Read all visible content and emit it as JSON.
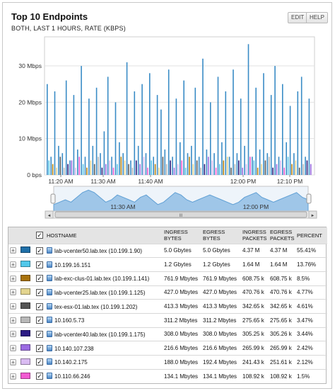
{
  "header": {
    "title": "Top 10 Endpoints",
    "subtitle": "BOTH, LAST 1 HOURS, RATE (KBPS)",
    "edit_label": "EDIT",
    "help_label": "HELP"
  },
  "chart_data": {
    "type": "bar",
    "y_ticks": [
      "0 bps",
      "10 Mbps",
      "20 Mbps",
      "30 Mbps"
    ],
    "y_values": [
      0,
      10,
      20,
      30
    ],
    "ylim": [
      0,
      38
    ],
    "x_ticks": [
      "11:20 AM",
      "11:30 AM",
      "11:40 AM",
      "12:00 PM",
      "12:10 PM"
    ],
    "grid": true,
    "series_colors": [
      "#3a8cc6",
      "#55c6e8",
      "#b5800e",
      "#e2d38f",
      "#5a5a5a",
      "#b6b6b6",
      "#2a1a7a",
      "#9a6ae0",
      "#d7b9f0",
      "#f05ad0"
    ],
    "primary_values": [
      25,
      5,
      23,
      8,
      6,
      26,
      4,
      22,
      7,
      30,
      5,
      21,
      8,
      24,
      6,
      12,
      27,
      5,
      20,
      9,
      6,
      31,
      4,
      23,
      8,
      25,
      6,
      28,
      5,
      22,
      18,
      7,
      29,
      5,
      21,
      9,
      26,
      6,
      8,
      24,
      5,
      32,
      7,
      20,
      6,
      27,
      9,
      23,
      5,
      29,
      6,
      21,
      8,
      36,
      5,
      24,
      7,
      28,
      6,
      22,
      30,
      5,
      25,
      9,
      19,
      6,
      23,
      27,
      5,
      21
    ],
    "secondary_values": [
      4,
      3,
      2,
      5,
      2,
      3,
      4,
      2,
      5,
      3,
      2,
      4,
      3,
      5,
      2,
      3,
      4,
      2,
      3,
      5,
      4,
      3,
      2,
      4,
      3,
      5,
      2,
      4,
      3,
      2,
      5,
      3,
      4,
      2,
      3,
      4,
      2,
      5,
      3,
      4,
      2,
      3,
      5,
      4,
      2,
      3,
      4,
      5,
      2,
      3,
      4,
      2,
      3,
      5,
      4,
      2,
      3,
      4,
      5,
      2,
      3,
      4,
      2,
      5,
      3,
      4,
      2,
      3,
      4,
      3
    ]
  },
  "overview": {
    "x_ticks": [
      "11:30 AM",
      "12:00 PM"
    ],
    "values": [
      3,
      4,
      5,
      4,
      6,
      8,
      9,
      8,
      6,
      4,
      5,
      7,
      6,
      5,
      4,
      6,
      7,
      5,
      3,
      4,
      6,
      8,
      7,
      5,
      4,
      5,
      6,
      7,
      6,
      5,
      4,
      3,
      4,
      6,
      7,
      8,
      6,
      5,
      4,
      5,
      6,
      7,
      8,
      6,
      5
    ]
  },
  "scrollbar": {
    "left_arrow": "◄",
    "right_arrow": "►",
    "grip": "III"
  },
  "table": {
    "headers": {
      "hostname": "HOSTNAME",
      "ingress_bytes": "INGRESS BYTES",
      "egress_bytes": "EGRESS BYTES",
      "ingress_packets": "INGRESS PACKETS",
      "egress_packets": "EGRESS PACKETS",
      "percent": "PERCENT"
    },
    "header_checkbox": "✓",
    "rows": [
      {
        "color": "#1f6fa8",
        "expand": "+",
        "check": "✓",
        "hostname": "lab-vcenter50.lab.tex (10.199.1.90)",
        "ingress_bytes": "5.0 Gbytes",
        "egress_bytes": "5.0 Gbytes",
        "ingress_packets": "4.37 M",
        "egress_packets": "4.37 M",
        "percent": "55.41%"
      },
      {
        "color": "#52c8ea",
        "expand": "+",
        "check": "✓",
        "hostname": "10.199.16.151",
        "ingress_bytes": "1.2 Gbytes",
        "egress_bytes": "1.2 Gbytes",
        "ingress_packets": "1.64 M",
        "egress_packets": "1.64 M",
        "percent": "13.76%"
      },
      {
        "color": "#a8720c",
        "expand": "+",
        "check": "✓",
        "hostname": "lab-exc-clus-01.lab.tex (10.199.1.141)",
        "ingress_bytes": "761.9 Mbytes",
        "egress_bytes": "761.9 Mbytes",
        "ingress_packets": "608.75 k",
        "egress_packets": "608.75 k",
        "percent": "8.5%"
      },
      {
        "color": "#e3d48e",
        "expand": "+",
        "check": "✓",
        "hostname": "lab-vcenter25.lab.tex (10.199.1.125)",
        "ingress_bytes": "427.0 Mbytes",
        "egress_bytes": "427.0 Mbytes",
        "ingress_packets": "470.76 k",
        "egress_packets": "470.76 k",
        "percent": "4.77%"
      },
      {
        "color": "#555555",
        "expand": "+",
        "check": "✓",
        "hostname": "tex-esx-01.lab.tex (10.199.1.202)",
        "ingress_bytes": "413.3 Mbytes",
        "egress_bytes": "413.3 Mbytes",
        "ingress_packets": "342.65 k",
        "egress_packets": "342.65 k",
        "percent": "4.61%"
      },
      {
        "color": "#b8b8b8",
        "expand": "+",
        "check": "✓",
        "hostname": "10.160.5.73",
        "ingress_bytes": "311.2 Mbytes",
        "egress_bytes": "311.2 Mbytes",
        "ingress_packets": "275.65 k",
        "egress_packets": "275.65 k",
        "percent": "3.47%"
      },
      {
        "color": "#2b1a84",
        "expand": "+",
        "check": "✓",
        "hostname": "lab-vcenter40.lab.tex (10.199.1.175)",
        "ingress_bytes": "308.0 Mbytes",
        "egress_bytes": "308.0 Mbytes",
        "ingress_packets": "305.25 k",
        "egress_packets": "305.26 k",
        "percent": "3.44%"
      },
      {
        "color": "#9b6be2",
        "expand": "+",
        "check": "✓",
        "hostname": "10.140.107.238",
        "ingress_bytes": "216.6 Mbytes",
        "egress_bytes": "216.6 Mbytes",
        "ingress_packets": "265.99 k",
        "egress_packets": "265.99 k",
        "percent": "2.42%"
      },
      {
        "color": "#d9bbf2",
        "expand": "+",
        "check": "✓",
        "hostname": "10.140.2.175",
        "ingress_bytes": "188.0 Mbytes",
        "egress_bytes": "192.4 Mbytes",
        "ingress_packets": "241.43 k",
        "egress_packets": "251.61 k",
        "percent": "2.12%"
      },
      {
        "color": "#f25ad2",
        "expand": "+",
        "check": "✓",
        "hostname": "10.110.66.246",
        "ingress_bytes": "134.1 Mbytes",
        "egress_bytes": "134.1 Mbytes",
        "ingress_packets": "108.92 k",
        "egress_packets": "108.92 k",
        "percent": "1.5%"
      }
    ]
  }
}
